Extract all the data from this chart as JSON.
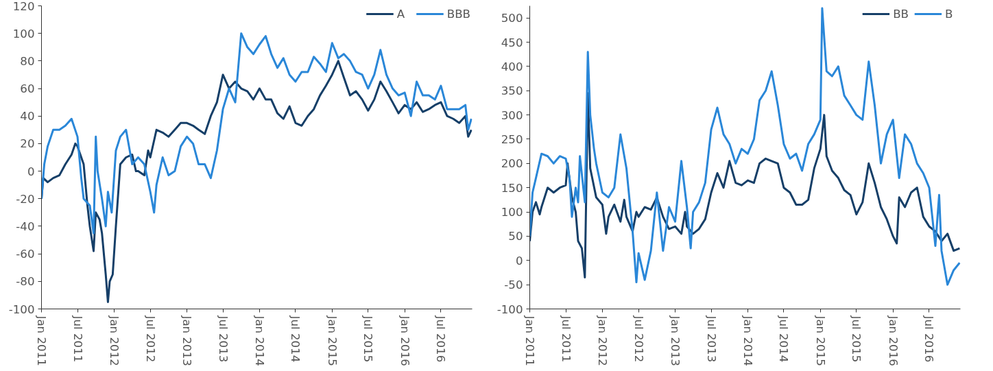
{
  "chart_data": [
    {
      "type": "line",
      "legend": "top right",
      "xlim": [
        "2011-01-01",
        "2016-12-05"
      ],
      "ylim": [
        -100,
        120
      ],
      "yticks": [
        -100,
        -80,
        -60,
        -40,
        -20,
        0,
        20,
        40,
        60,
        80,
        100,
        120
      ],
      "xticks": [
        {
          "value": "2011-01-01",
          "label": "Jan 2011"
        },
        {
          "value": "2011-07-01",
          "label": "Jul 2011"
        },
        {
          "value": "2012-01-01",
          "label": "Jan 2012"
        },
        {
          "value": "2012-07-01",
          "label": "Jul 2012"
        },
        {
          "value": "2013-01-01",
          "label": "Jan 2013"
        },
        {
          "value": "2013-07-01",
          "label": "Jul 2013"
        },
        {
          "value": "2014-01-01",
          "label": "Jan 2014"
        },
        {
          "value": "2014-07-01",
          "label": "Jul 2014"
        },
        {
          "value": "2015-01-01",
          "label": "Jan 2015"
        },
        {
          "value": "2015-07-01",
          "label": "Jul 2015"
        },
        {
          "value": "2016-01-01",
          "label": "Jan 2016"
        },
        {
          "value": "2016-07-01",
          "label": "Jul 2016"
        }
      ],
      "series": [
        {
          "name": "A",
          "color": "#163f68",
          "x": [
            "2011-01-01",
            "2011-01-10",
            "2011-02",
            "2011-03",
            "2011-04",
            "2011-05",
            "2011-06",
            "2011-06-20",
            "2011-07",
            "2011-08",
            "2011-08-20",
            "2011-09",
            "2011-09-20",
            "2011-10",
            "2011-10-20",
            "2011-11",
            "2011-11-20",
            "2011-12-01",
            "2011-12-10",
            "2011-12-25",
            "2012-01-10",
            "2012-02",
            "2012-03",
            "2012-04",
            "2012-04-20",
            "2012-05",
            "2012-06",
            "2012-06-20",
            "2012-07",
            "2012-08",
            "2012-09",
            "2012-10",
            "2012-11",
            "2012-12",
            "2013-01",
            "2013-02",
            "2013-03",
            "2013-04",
            "2013-05",
            "2013-06",
            "2013-07",
            "2013-08",
            "2013-09",
            "2013-10",
            "2013-11",
            "2013-12",
            "2014-01",
            "2014-02",
            "2014-03",
            "2014-04",
            "2014-05",
            "2014-06",
            "2014-07",
            "2014-08",
            "2014-09",
            "2014-10",
            "2014-11",
            "2014-12",
            "2015-01",
            "2015-02",
            "2015-03",
            "2015-04",
            "2015-05",
            "2015-06",
            "2015-07",
            "2015-08",
            "2015-09",
            "2015-10",
            "2015-11",
            "2015-12",
            "2016-01",
            "2016-02",
            "2016-03",
            "2016-04",
            "2016-05",
            "2016-06",
            "2016-07",
            "2016-08",
            "2016-09",
            "2016-10",
            "2016-11",
            "2016-11-15",
            "2016-12-01"
          ],
          "values": [
            -20,
            -5,
            -8,
            -5,
            -3,
            5,
            12,
            20,
            18,
            5,
            -25,
            -40,
            -58,
            -30,
            -35,
            -45,
            -75,
            -95,
            -80,
            -75,
            -40,
            5,
            10,
            12,
            0,
            0,
            -3,
            15,
            10,
            30,
            28,
            25,
            30,
            35,
            35,
            33,
            30,
            27,
            40,
            50,
            70,
            60,
            65,
            60,
            58,
            52,
            60,
            52,
            52,
            42,
            38,
            47,
            35,
            33,
            40,
            45,
            55,
            62,
            70,
            80,
            68,
            55,
            58,
            52,
            44,
            52,
            65,
            58,
            50,
            42,
            48,
            45,
            50,
            43,
            45,
            48,
            50,
            40,
            38,
            35,
            40,
            25,
            30
          ]
        },
        {
          "name": "BBB",
          "color": "#2a87d8",
          "x": [
            "2011-01-01",
            "2011-01-15",
            "2011-02",
            "2011-03",
            "2011-04",
            "2011-05",
            "2011-06",
            "2011-07",
            "2011-07-20",
            "2011-08",
            "2011-09",
            "2011-09-20",
            "2011-10",
            "2011-10-10",
            "2011-11",
            "2011-11-20",
            "2011-12",
            "2011-12-20",
            "2012-01-10",
            "2012-02",
            "2012-03",
            "2012-04",
            "2012-05",
            "2012-06",
            "2012-07",
            "2012-07-20",
            "2012-08",
            "2012-09",
            "2012-10",
            "2012-11",
            "2012-12",
            "2013-01",
            "2013-02",
            "2013-03",
            "2013-04",
            "2013-05",
            "2013-06",
            "2013-07",
            "2013-08",
            "2013-09",
            "2013-10",
            "2013-11",
            "2013-12",
            "2014-01",
            "2014-02",
            "2014-03",
            "2014-04",
            "2014-05",
            "2014-06",
            "2014-07",
            "2014-08",
            "2014-09",
            "2014-10",
            "2014-11",
            "2014-12",
            "2015-01",
            "2015-02",
            "2015-03",
            "2015-04",
            "2015-05",
            "2015-06",
            "2015-07",
            "2015-08",
            "2015-09",
            "2015-10",
            "2015-11",
            "2015-12",
            "2016-01",
            "2016-02",
            "2016-03",
            "2016-04",
            "2016-05",
            "2016-06",
            "2016-07",
            "2016-08",
            "2016-09",
            "2016-10",
            "2016-11",
            "2016-11-15",
            "2016-12-01"
          ],
          "values": [
            -20,
            5,
            18,
            30,
            30,
            33,
            38,
            25,
            -5,
            -20,
            -25,
            -45,
            25,
            0,
            -20,
            -40,
            -15,
            -30,
            15,
            25,
            30,
            5,
            10,
            5,
            -15,
            -30,
            -10,
            10,
            -3,
            0,
            18,
            25,
            20,
            5,
            5,
            -5,
            15,
            45,
            60,
            50,
            100,
            90,
            85,
            92,
            98,
            85,
            75,
            82,
            70,
            65,
            72,
            72,
            83,
            78,
            72,
            93,
            82,
            85,
            80,
            72,
            70,
            60,
            70,
            88,
            70,
            60,
            55,
            57,
            40,
            65,
            55,
            55,
            52,
            62,
            45,
            45,
            45,
            48,
            30,
            38
          ]
        }
      ]
    },
    {
      "type": "line",
      "legend": "top right",
      "xlim": [
        "2011-01-01",
        "2016-12-05"
      ],
      "ylim": [
        -100,
        525
      ],
      "yticks": [
        -100,
        -50,
        0,
        50,
        100,
        150,
        200,
        250,
        300,
        350,
        400,
        450,
        500
      ],
      "xticks": [
        {
          "value": "2011-01-01",
          "label": "Jan 2011"
        },
        {
          "value": "2011-07-01",
          "label": "Jul 2011"
        },
        {
          "value": "2012-01-01",
          "label": "Jan 2012"
        },
        {
          "value": "2012-07-01",
          "label": "Jul 2012"
        },
        {
          "value": "2013-01-01",
          "label": "Jan 2013"
        },
        {
          "value": "2013-07-01",
          "label": "Jul 2013"
        },
        {
          "value": "2014-01-01",
          "label": "Jan 2014"
        },
        {
          "value": "2014-07-01",
          "label": "Jul 2014"
        },
        {
          "value": "2015-01-01",
          "label": "Jan 2015"
        },
        {
          "value": "2015-07-01",
          "label": "Jul 2015"
        },
        {
          "value": "2016-01-01",
          "label": "Jan 2016"
        },
        {
          "value": "2016-07-01",
          "label": "Jul 2016"
        }
      ],
      "series": [
        {
          "name": "BB",
          "color": "#163f68",
          "x": [
            "2011-01",
            "2011-01-15",
            "2011-02",
            "2011-02-20",
            "2011-03",
            "2011-04",
            "2011-05",
            "2011-06",
            "2011-07",
            "2011-07-10",
            "2011-08",
            "2011-08-20",
            "2011-09",
            "2011-09-20",
            "2011-10-05",
            "2011-10-20",
            "2011-11",
            "2011-12",
            "2012-01",
            "2012-01-20",
            "2012-02",
            "2012-03",
            "2012-04",
            "2012-04-20",
            "2012-05",
            "2012-06",
            "2012-06-20",
            "2012-07",
            "2012-08",
            "2012-09",
            "2012-10",
            "2012-11",
            "2012-12",
            "2013-01",
            "2013-02",
            "2013-02-20",
            "2013-03",
            "2013-04",
            "2013-05",
            "2013-06",
            "2013-07",
            "2013-08",
            "2013-09",
            "2013-10",
            "2013-11",
            "2013-12",
            "2014-01",
            "2014-02",
            "2014-03",
            "2014-04",
            "2014-05",
            "2014-06",
            "2014-07",
            "2014-08",
            "2014-09",
            "2014-10",
            "2014-11",
            "2014-12",
            "2015-01",
            "2015-01-20",
            "2015-02",
            "2015-03",
            "2015-04",
            "2015-05",
            "2015-06",
            "2015-07",
            "2015-08",
            "2015-09",
            "2015-10",
            "2015-11",
            "2015-12",
            "2016-01",
            "2016-01-20",
            "2016-02",
            "2016-03",
            "2016-04",
            "2016-05",
            "2016-06",
            "2016-07",
            "2016-08",
            "2016-09",
            "2016-10",
            "2016-11",
            "2016-12-01"
          ],
          "values": [
            40,
            100,
            120,
            95,
            110,
            150,
            140,
            150,
            155,
            200,
            130,
            100,
            40,
            25,
            -35,
            345,
            190,
            130,
            115,
            55,
            90,
            115,
            80,
            125,
            90,
            60,
            100,
            90,
            110,
            105,
            130,
            90,
            65,
            70,
            55,
            100,
            70,
            55,
            65,
            85,
            140,
            180,
            150,
            205,
            160,
            155,
            165,
            160,
            200,
            210,
            205,
            200,
            150,
            140,
            115,
            115,
            125,
            190,
            230,
            300,
            215,
            185,
            170,
            145,
            135,
            95,
            120,
            200,
            160,
            110,
            85,
            50,
            35,
            130,
            110,
            140,
            150,
            90,
            70,
            60,
            40,
            55,
            20,
            25
          ]
        },
        {
          "name": "B",
          "color": "#2a87d8",
          "x": [
            "2011-01",
            "2011-01-15",
            "2011-02",
            "2011-03",
            "2011-04",
            "2011-05",
            "2011-06",
            "2011-07",
            "2011-07-20",
            "2011-08",
            "2011-08-20",
            "2011-09",
            "2011-09-10",
            "2011-10-05",
            "2011-10-20",
            "2011-11",
            "2011-11-20",
            "2011-12",
            "2012-01",
            "2012-02",
            "2012-03",
            "2012-04",
            "2012-05",
            "2012-06",
            "2012-06-20",
            "2012-07",
            "2012-08",
            "2012-09",
            "2012-10",
            "2012-11",
            "2012-12",
            "2013-01",
            "2013-02",
            "2013-03",
            "2013-03-20",
            "2013-04",
            "2013-05",
            "2013-06",
            "2013-07",
            "2013-08",
            "2013-09",
            "2013-10",
            "2013-11",
            "2013-12",
            "2014-01",
            "2014-02",
            "2014-03",
            "2014-04",
            "2014-05",
            "2014-06",
            "2014-07",
            "2014-08",
            "2014-09",
            "2014-10",
            "2014-11",
            "2014-12",
            "2015-01",
            "2015-01-10",
            "2015-02",
            "2015-03",
            "2015-04",
            "2015-05",
            "2015-06",
            "2015-07",
            "2015-08",
            "2015-09",
            "2015-10",
            "2015-11",
            "2015-12",
            "2016-01",
            "2016-02",
            "2016-03",
            "2016-04",
            "2016-05",
            "2016-06",
            "2016-07",
            "2016-08",
            "2016-08-20",
            "2016-09",
            "2016-10",
            "2016-11",
            "2016-12-01"
          ],
          "values": [
            50,
            140,
            170,
            220,
            215,
            200,
            215,
            210,
            170,
            90,
            150,
            120,
            215,
            120,
            430,
            300,
            230,
            200,
            140,
            130,
            150,
            260,
            190,
            60,
            -45,
            15,
            -40,
            20,
            140,
            20,
            110,
            80,
            205,
            110,
            25,
            100,
            120,
            160,
            270,
            315,
            260,
            240,
            200,
            230,
            220,
            250,
            330,
            350,
            390,
            320,
            240,
            210,
            220,
            185,
            240,
            260,
            290,
            520,
            390,
            380,
            400,
            340,
            320,
            300,
            290,
            410,
            320,
            200,
            260,
            290,
            170,
            260,
            240,
            200,
            180,
            150,
            30,
            135,
            20,
            -50,
            -20,
            -5
          ]
        }
      ]
    }
  ]
}
